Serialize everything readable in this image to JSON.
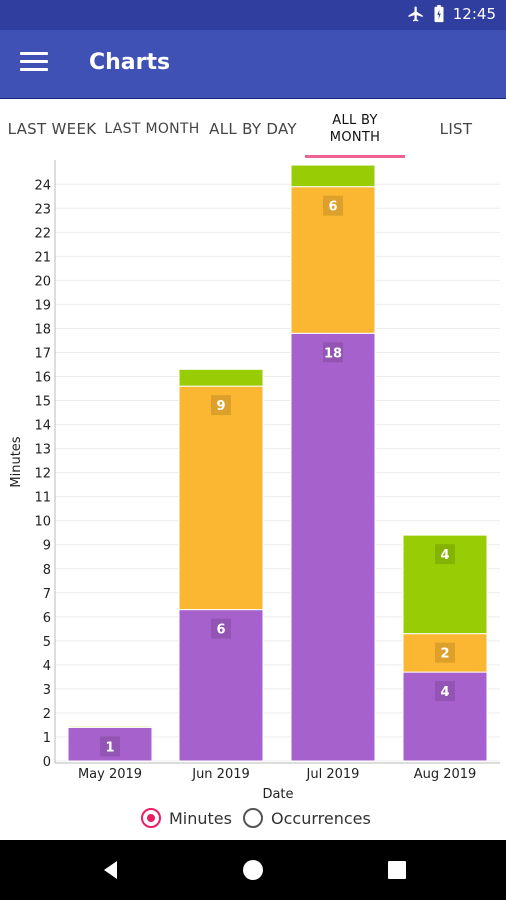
{
  "status_bar": {
    "time": "12:45"
  },
  "app_bar": {
    "title": "Charts"
  },
  "tabs": [
    {
      "label": "LAST WEEK"
    },
    {
      "label": "LAST MONTH"
    },
    {
      "label": "ALL BY DAY"
    },
    {
      "label": "ALL BY MONTH"
    },
    {
      "label": "LIST"
    }
  ],
  "colors": {
    "purple": "#a761cc",
    "orange": "#fbb732",
    "green": "#98cc05",
    "accent": "#e91e63",
    "appbar": "#3f51b5"
  },
  "chart_data": {
    "type": "bar",
    "stacked": true,
    "categories": [
      "May 2019",
      "Jun 2019",
      "Jul 2019",
      "Aug 2019"
    ],
    "series": [
      {
        "values": [
          1.4,
          6.3,
          17.8,
          3.7
        ],
        "labels": [
          "1",
          "6",
          "18",
          "4"
        ]
      },
      {
        "values": [
          0,
          9.3,
          6.1,
          1.6
        ],
        "labels": [
          "",
          "9",
          "6",
          "2"
        ]
      },
      {
        "values": [
          0.05,
          0.7,
          0.9,
          4.1
        ],
        "labels": [
          "",
          "",
          "",
          "4"
        ]
      }
    ],
    "xlabel": "Date",
    "ylabel": "Minutes",
    "ylim": [
      0,
      24
    ],
    "yticks": [
      0,
      1,
      2,
      3,
      4,
      5,
      6,
      7,
      8,
      9,
      10,
      11,
      12,
      13,
      14,
      15,
      16,
      17,
      18,
      19,
      20,
      21,
      22,
      23,
      24
    ],
    "grid": true
  },
  "legend": {
    "minutes_label": "Minutes",
    "occurrences_label": "Occurrences",
    "selected": "Minutes"
  }
}
